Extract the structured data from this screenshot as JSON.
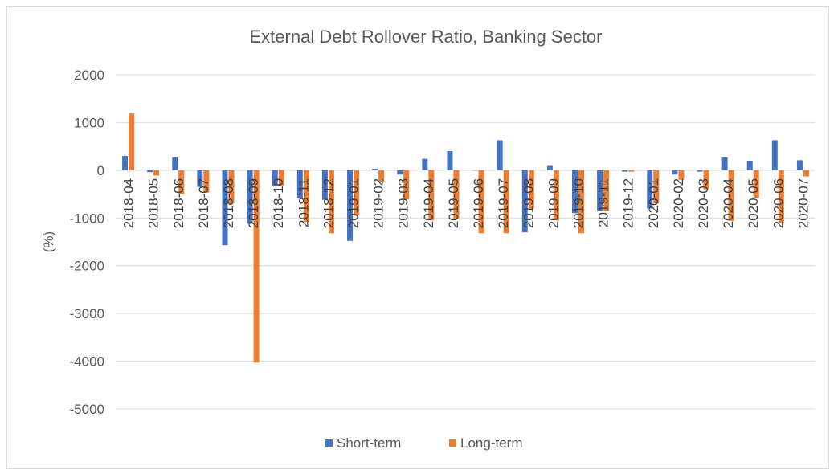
{
  "chart_data": {
    "type": "bar",
    "title": "External Debt Rollover Ratio, Banking Sector",
    "xlabel": "",
    "ylabel": "(%)",
    "ylim": [
      -5000,
      2000
    ],
    "yticks": [
      2000,
      1000,
      0,
      -1000,
      -2000,
      -3000,
      -4000,
      -5000
    ],
    "grid": true,
    "legend_position": "bottom",
    "categories": [
      "2018-04",
      "2018-05",
      "2018-06",
      "2018-07",
      "2018-08",
      "2018-09",
      "2018-10",
      "2018-11",
      "2018-12",
      "2019-01",
      "2019-02",
      "2019-03",
      "2019-04",
      "2019-05",
      "2019-06",
      "2019-07",
      "2019-08",
      "2019-09",
      "2019-10",
      "2019-11",
      "2019-12",
      "2020-01",
      "2020-02",
      "2020-03",
      "2020-04",
      "2020-05",
      "2020-06",
      "2020-07"
    ],
    "series": [
      {
        "name": "Short-term",
        "color": "#4472c4",
        "values": [
          300,
          -40,
          270,
          -350,
          -1570,
          -1120,
          -330,
          -580,
          -620,
          -1480,
          30,
          -90,
          240,
          400,
          0,
          630,
          -1300,
          90,
          -900,
          -860,
          -30,
          -800,
          -90,
          -30,
          270,
          200,
          630,
          210
        ]
      },
      {
        "name": "Long-term",
        "color": "#ed7d31",
        "values": [
          1190,
          -110,
          -500,
          -470,
          -700,
          -4030,
          -330,
          -1080,
          -1320,
          -950,
          -240,
          -610,
          -1050,
          -1020,
          -1320,
          -1320,
          -800,
          -1050,
          -1320,
          -860,
          -30,
          -690,
          -200,
          -400,
          -1060,
          -580,
          -1100,
          -130
        ]
      }
    ]
  }
}
